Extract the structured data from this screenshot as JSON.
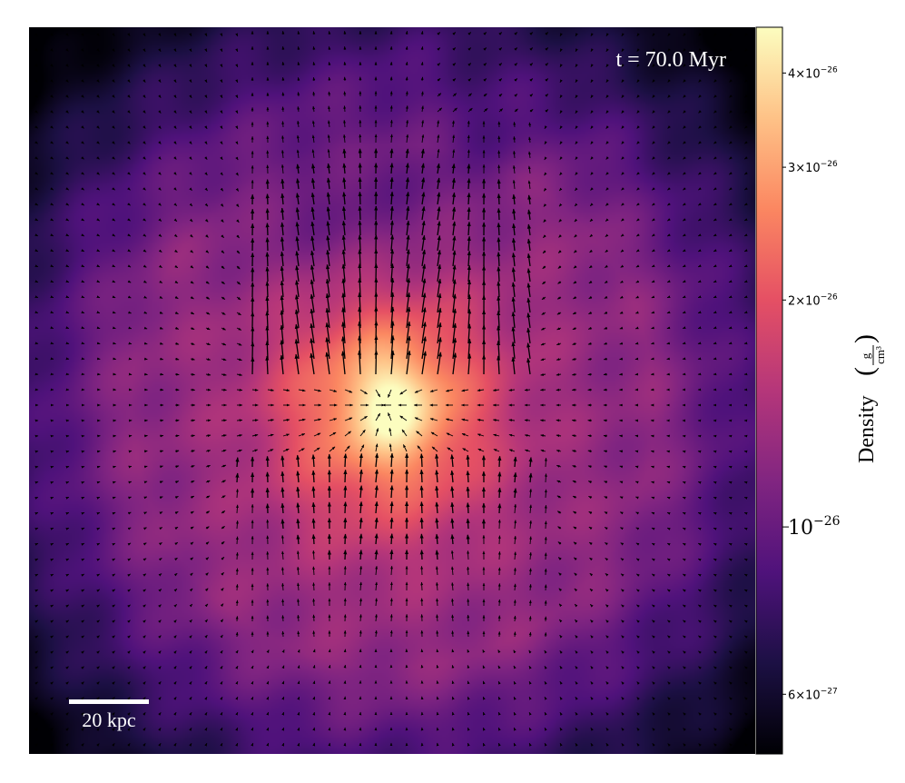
{
  "time_label": "t = 70.0 Myr",
  "scale_bar_label": "20 kpc",
  "colorbar": {
    "label": "Density",
    "unit_num": "g",
    "unit_den": "cm³",
    "colors": [
      "#000004",
      "#1c1044",
      "#4f127b",
      "#812581",
      "#b5367a",
      "#e55064",
      "#fb8761",
      "#fec287",
      "#fcfdbf"
    ],
    "ticks": [
      {
        "value": 4e-26,
        "mantissa": "4",
        "exp": "−26",
        "major": false
      },
      {
        "value": 3e-26,
        "mantissa": "3",
        "exp": "−26",
        "major": false
      },
      {
        "value": 2e-26,
        "mantissa": "2",
        "exp": "−26",
        "major": false
      },
      {
        "value": 1e-26,
        "mantissa": "",
        "exp": "−26",
        "major": true
      },
      {
        "value": 6e-27,
        "mantissa": "6",
        "exp": "−27",
        "major": false
      }
    ],
    "vmin": 5e-27,
    "vmax": 4.6e-26
  }
}
